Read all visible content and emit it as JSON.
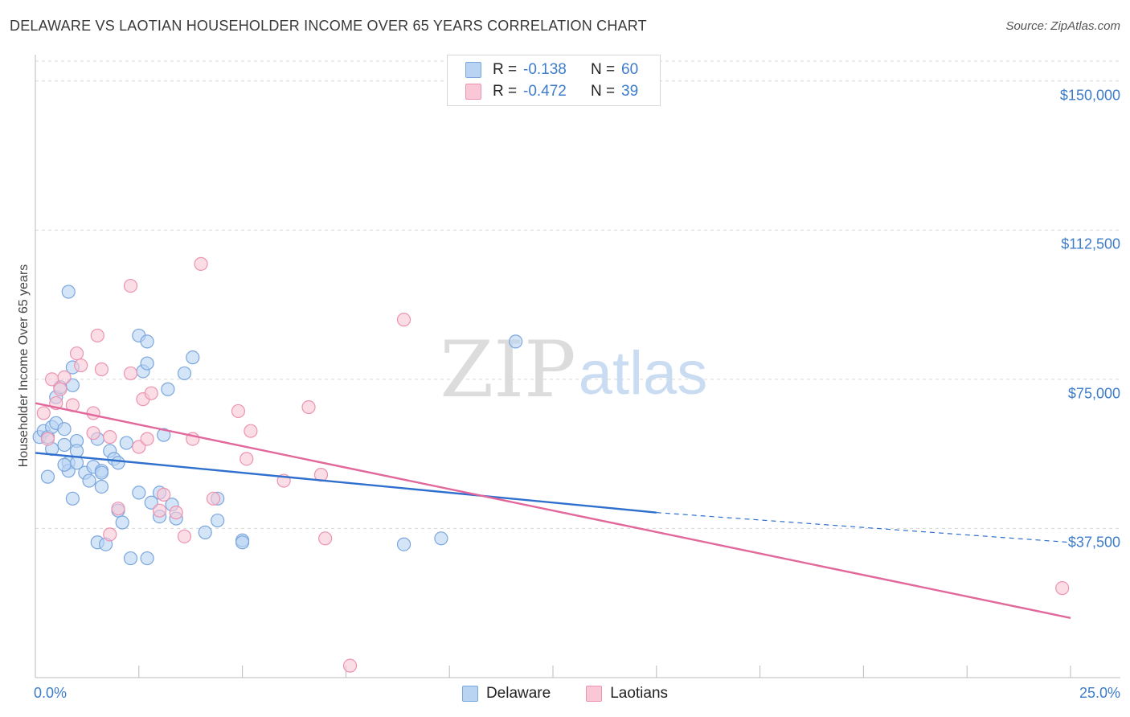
{
  "header": {
    "title": "DELAWARE VS LAOTIAN HOUSEHOLDER INCOME OVER 65 YEARS CORRELATION CHART",
    "source": "Source: ZipAtlas.com"
  },
  "watermark": {
    "zip": "ZIP",
    "atlas": "atlas"
  },
  "colors": {
    "delaware_fill": "#b9d3f3",
    "delaware_stroke": "#7aa6de",
    "delaware_line": "#2f6fce",
    "laotian_fill": "#f9c7d6",
    "laotian_stroke": "#ec93b0",
    "laotian_line": "#e2679a",
    "tick_text": "#3d7cc9",
    "grid": "#d8d8d8"
  },
  "legend": {
    "rows": [
      {
        "r_label": "R =",
        "r_value": "-0.138",
        "n_label": "N =",
        "n_value": "60"
      },
      {
        "r_label": "R =",
        "r_value": "-0.472",
        "n_label": "N =",
        "n_value": "39"
      }
    ],
    "series_names": [
      "Delaware",
      "Laotians"
    ]
  },
  "chart_data": {
    "type": "scatter",
    "title": "DELAWARE VS LAOTIAN HOUSEHOLDER INCOME OVER 65 YEARS CORRELATION CHART",
    "xlabel": "",
    "ylabel": "Householder Income Over 65 years",
    "xlim": [
      0,
      25
    ],
    "ylim": [
      0,
      155000
    ],
    "x_tick_labels": [
      "0.0%",
      "25.0%"
    ],
    "y_ticks": [
      37500,
      75000,
      112500,
      150000
    ],
    "y_tick_labels": [
      "$37,500",
      "$75,000",
      "$112,500",
      "$150,000"
    ],
    "grid": true,
    "legend_position": "top-center",
    "series": [
      {
        "name": "Delaware",
        "r": -0.138,
        "n": 60,
        "trend": {
          "x0": 0,
          "y0": 56500,
          "x1": 15,
          "y1": 41500,
          "dashed_to_x": 25,
          "dashed_to_y": 34000
        },
        "points": [
          [
            0.1,
            60500
          ],
          [
            0.2,
            62000
          ],
          [
            0.3,
            60500
          ],
          [
            0.3,
            50500
          ],
          [
            0.4,
            57500
          ],
          [
            0.4,
            63000
          ],
          [
            0.5,
            64000
          ],
          [
            0.5,
            70500
          ],
          [
            0.6,
            73000
          ],
          [
            0.7,
            62500
          ],
          [
            0.7,
            58500
          ],
          [
            0.8,
            54000
          ],
          [
            0.8,
            52000
          ],
          [
            0.8,
            97000
          ],
          [
            0.9,
            78000
          ],
          [
            0.9,
            73500
          ],
          [
            1.0,
            59500
          ],
          [
            0.9,
            45000
          ],
          [
            1.0,
            57000
          ],
          [
            1.0,
            54000
          ],
          [
            1.2,
            51500
          ],
          [
            1.3,
            49500
          ],
          [
            1.4,
            53000
          ],
          [
            1.5,
            60000
          ],
          [
            1.6,
            52000
          ],
          [
            1.6,
            51500
          ],
          [
            1.6,
            48000
          ],
          [
            1.8,
            57000
          ],
          [
            1.9,
            55000
          ],
          [
            2.0,
            54000
          ],
          [
            2.0,
            42000
          ],
          [
            2.1,
            39000
          ],
          [
            2.2,
            59000
          ],
          [
            2.3,
            30000
          ],
          [
            2.5,
            86000
          ],
          [
            2.5,
            46500
          ],
          [
            2.6,
            77000
          ],
          [
            2.7,
            79000
          ],
          [
            2.7,
            84500
          ],
          [
            2.7,
            30000
          ],
          [
            2.8,
            44000
          ],
          [
            3.0,
            40500
          ],
          [
            3.0,
            46500
          ],
          [
            3.1,
            61000
          ],
          [
            3.2,
            72500
          ],
          [
            3.3,
            43500
          ],
          [
            3.4,
            40000
          ],
          [
            3.6,
            76500
          ],
          [
            3.8,
            80500
          ],
          [
            4.1,
            36500
          ],
          [
            4.4,
            45000
          ],
          [
            4.4,
            39500
          ],
          [
            5.0,
            34500
          ],
          [
            5.0,
            34000
          ],
          [
            8.9,
            33500
          ],
          [
            9.8,
            35000
          ],
          [
            11.6,
            84500
          ],
          [
            0.7,
            53500
          ],
          [
            1.5,
            34000
          ],
          [
            1.7,
            33500
          ]
        ]
      },
      {
        "name": "Laotians",
        "r": -0.472,
        "n": 39,
        "trend": {
          "x0": 0,
          "y0": 69000,
          "x1": 25,
          "y1": 15000
        },
        "points": [
          [
            0.2,
            66500
          ],
          [
            0.3,
            60000
          ],
          [
            0.4,
            75000
          ],
          [
            0.5,
            69000
          ],
          [
            0.6,
            72500
          ],
          [
            0.7,
            75500
          ],
          [
            0.9,
            68500
          ],
          [
            1.0,
            81500
          ],
          [
            1.1,
            78500
          ],
          [
            1.4,
            66500
          ],
          [
            1.4,
            61500
          ],
          [
            1.5,
            86000
          ],
          [
            1.6,
            77500
          ],
          [
            1.8,
            60500
          ],
          [
            2.0,
            42500
          ],
          [
            2.3,
            76500
          ],
          [
            2.3,
            98500
          ],
          [
            2.5,
            58000
          ],
          [
            2.6,
            70000
          ],
          [
            2.7,
            60000
          ],
          [
            2.8,
            71500
          ],
          [
            3.0,
            42000
          ],
          [
            3.1,
            46000
          ],
          [
            3.4,
            41500
          ],
          [
            3.6,
            35500
          ],
          [
            3.8,
            60000
          ],
          [
            4.0,
            104000
          ],
          [
            4.3,
            45000
          ],
          [
            4.9,
            67000
          ],
          [
            5.1,
            55000
          ],
          [
            5.2,
            62000
          ],
          [
            6.0,
            49500
          ],
          [
            6.6,
            68000
          ],
          [
            6.9,
            51000
          ],
          [
            7.0,
            35000
          ],
          [
            8.9,
            90000
          ],
          [
            24.8,
            22500
          ],
          [
            7.6,
            3000
          ],
          [
            1.8,
            36000
          ]
        ]
      }
    ]
  }
}
